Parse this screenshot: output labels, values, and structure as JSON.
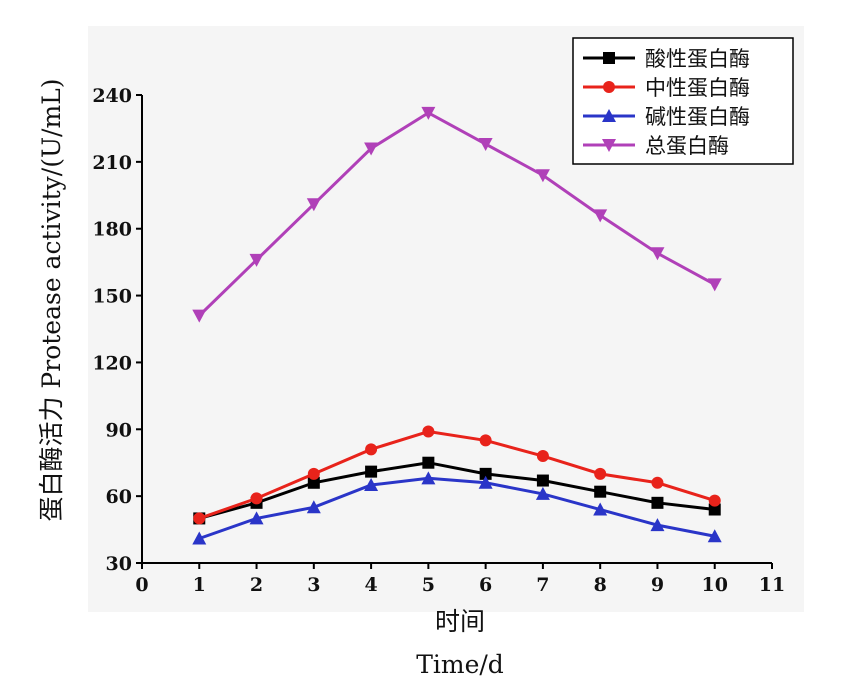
{
  "chart_data": {
    "type": "line",
    "xlabel_cn": "时间",
    "xlabel_en": "Time/d",
    "ylabel": "蛋白酶活力 Protease activity/(U/mL)",
    "x_ticks": [
      "0",
      "1",
      "2",
      "3",
      "4",
      "5",
      "6",
      "7",
      "8",
      "9",
      "10",
      "11"
    ],
    "y_ticks": [
      "30",
      "60",
      "90",
      "120",
      "150",
      "180",
      "210",
      "240"
    ],
    "xlim": [
      0,
      11
    ],
    "ylim": [
      30,
      240
    ],
    "grid": false,
    "legend_position": "top-right",
    "x": [
      1,
      2,
      3,
      4,
      5,
      6,
      7,
      8,
      9,
      10
    ],
    "series": [
      {
        "name": "酸性蛋白酶",
        "color": "#000000",
        "marker": "square",
        "values": [
          50,
          57,
          66,
          71,
          75,
          70,
          67,
          62,
          57,
          54
        ]
      },
      {
        "name": "中性蛋白酶",
        "color": "#e8231b",
        "marker": "circle",
        "values": [
          50,
          59,
          70,
          81,
          89,
          85,
          78,
          70,
          66,
          58
        ]
      },
      {
        "name": "碱性蛋白酶",
        "color": "#2a35c8",
        "marker": "triangle-up",
        "values": [
          41,
          50,
          55,
          65,
          68,
          66,
          61,
          54,
          47,
          42
        ]
      },
      {
        "name": "总蛋白酶",
        "color": "#b040b8",
        "marker": "triangle-down",
        "values": [
          141,
          166,
          191,
          216,
          232,
          218,
          204,
          186,
          169,
          155
        ]
      }
    ]
  }
}
